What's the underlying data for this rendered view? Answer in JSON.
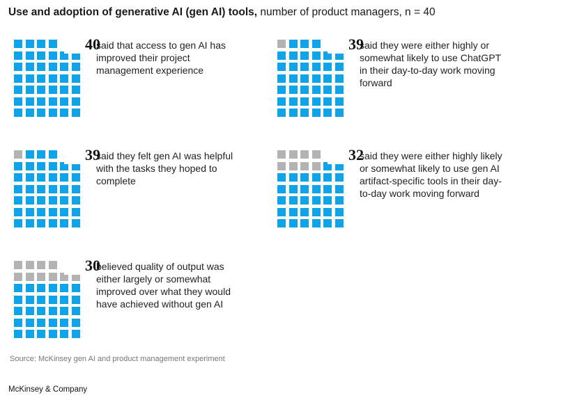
{
  "title": {
    "bold": "Use and adoption of generative AI (gen AI) tools,",
    "rest": " number of product managers, n = 40"
  },
  "colors": {
    "filled": "#0fa3ea",
    "empty": "#b3b3b3"
  },
  "chart_data": {
    "type": "waffle",
    "total": 40,
    "columns": 6,
    "rows": 7,
    "items": [
      {
        "value": 40,
        "label": "said that access to gen AI has improved their project management experience"
      },
      {
        "value": 39,
        "label": "said they were either highly or somewhat likely to use ChatGPT in their day-to-day work moving forward"
      },
      {
        "value": 39,
        "label": "said they felt gen AI was helpful with the tasks they hoped to complete"
      },
      {
        "value": 32,
        "label": "said they were either highly likely or somewhat likely to use gen AI artifact-specific tools in their day-to-day work moving forward"
      },
      {
        "value": 30,
        "label": "believed quality of output was either largely or somewhat improved over what they would have achieved without gen AI"
      }
    ]
  },
  "source": "Source: McKinsey gen AI and product management experiment",
  "footer": "McKinsey & Company"
}
